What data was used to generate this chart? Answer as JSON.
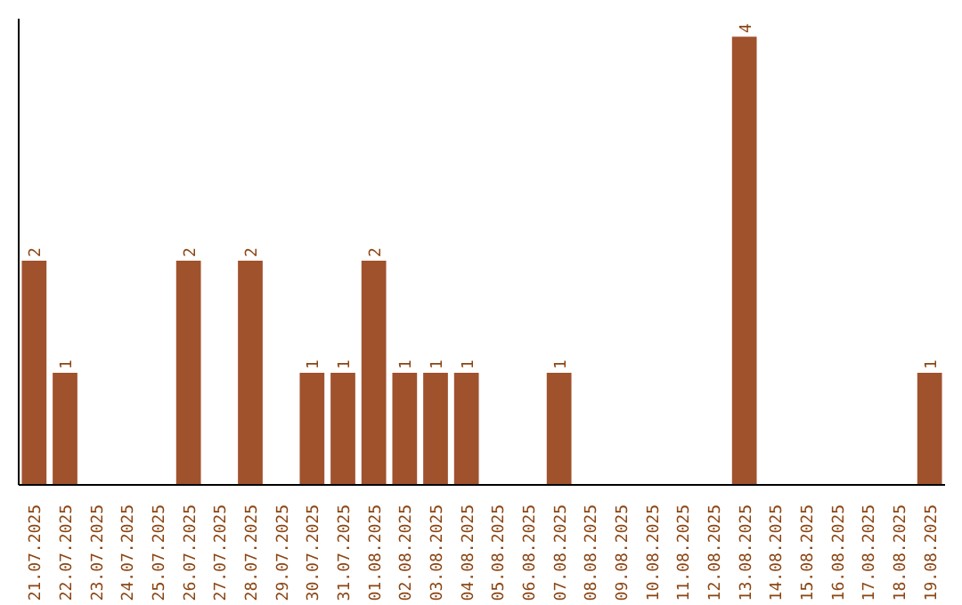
{
  "chart_data": {
    "type": "bar",
    "color": "#a0522d",
    "categories": [
      "21.07.2025",
      "22.07.2025",
      "23.07.2025",
      "24.07.2025",
      "25.07.2025",
      "26.07.2025",
      "27.07.2025",
      "28.07.2025",
      "29.07.2025",
      "30.07.2025",
      "31.07.2025",
      "01.08.2025",
      "02.08.2025",
      "03.08.2025",
      "04.08.2025",
      "05.08.2025",
      "06.08.2025",
      "07.08.2025",
      "08.08.2025",
      "09.08.2025",
      "10.08.2025",
      "11.08.2025",
      "12.08.2025",
      "13.08.2025",
      "14.08.2025",
      "15.08.2025",
      "16.08.2025",
      "17.08.2025",
      "18.08.2025",
      "19.08.2025"
    ],
    "values": [
      2,
      1,
      0,
      0,
      0,
      2,
      0,
      2,
      0,
      1,
      1,
      2,
      1,
      1,
      1,
      0,
      0,
      1,
      0,
      0,
      0,
      0,
      0,
      4,
      0,
      0,
      0,
      0,
      0,
      1
    ],
    "value_labels": [
      "2",
      "1",
      null,
      null,
      null,
      "2",
      null,
      "2",
      null,
      "1",
      "1",
      "2",
      "1",
      "1",
      "1",
      null,
      null,
      "1",
      null,
      null,
      null,
      null,
      null,
      "4",
      null,
      null,
      null,
      null,
      null,
      "1"
    ],
    "grid": false
  }
}
